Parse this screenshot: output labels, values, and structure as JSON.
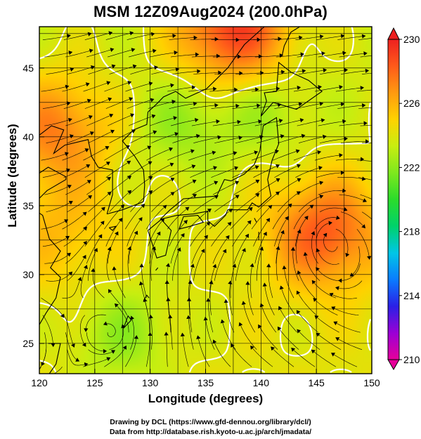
{
  "title": "MSM 12Z09Aug2024 (200.0hPa)",
  "xlabel": "Longitude (degrees)",
  "ylabel": "Latitude  (degrees)",
  "x_ticks": [
    "120",
    "125",
    "130",
    "135",
    "140",
    "145",
    "150"
  ],
  "y_ticks": [
    "25",
    "30",
    "35",
    "40",
    "45"
  ],
  "colorbar": {
    "ticks": [
      "210",
      "214",
      "218",
      "222",
      "226",
      "230"
    ],
    "colors": [
      "#e6009a",
      "#9b00d6",
      "#2a20e6",
      "#0a7cff",
      "#00c6e6",
      "#00d26a",
      "#2bdc2b",
      "#7ee81e",
      "#c8ee10",
      "#ffd200",
      "#ff9a10",
      "#ff5a1a",
      "#ee2020"
    ]
  },
  "credits": [
    "Drawing by DCL (https://www.gfd-dennou.org/library/dcl/)",
    "Data from http://database.rish.kyoto-u.ac.jp/arch/jmadata/"
  ],
  "map": {
    "lon_range": [
      120,
      150
    ],
    "lat_range": [
      22.8,
      48
    ],
    "field": "temperature",
    "field_range": [
      210,
      230
    ],
    "warm_centers": [
      {
        "lon": 145.8,
        "lat": 33.0,
        "value": 228.0
      },
      {
        "lon": 137.5,
        "lat": 47.8,
        "value": 229.0
      },
      {
        "lon": 121.5,
        "lat": 40.5,
        "value": 227.0
      },
      {
        "lon": 122.0,
        "lat": 33.0,
        "value": 225.2
      }
    ],
    "cool_centers": [
      {
        "lon": 127.5,
        "lat": 25.5,
        "value": 222.0
      },
      {
        "lon": 133.0,
        "lat": 41.0,
        "value": 222.3
      },
      {
        "lon": 140.5,
        "lat": 42.0,
        "value": 222.6
      }
    ],
    "contour_level": 224,
    "vortex_center": {
      "lon": 146.0,
      "lat": 33.0
    }
  }
}
